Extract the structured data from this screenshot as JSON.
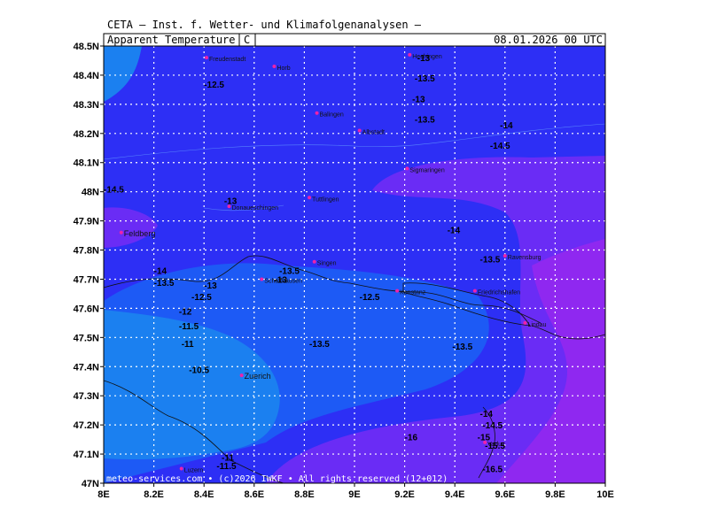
{
  "header": {
    "institute": "CETA — Inst. f. Wetter- und Klimafolgenanalysen —",
    "parameter": "Apparent_Temperature",
    "unit": "C",
    "datetime": "08.01.2026 00 UTC"
  },
  "footer": {
    "credit": "meteo-services.com • (c)2026 IWKF • All rights reserved (12+012)"
  },
  "axes": {
    "lon_labels": [
      "8E",
      "8.2E",
      "8.4E",
      "8.6E",
      "8.8E",
      "9E",
      "9.2E",
      "9.4E",
      "9.6E",
      "9.8E",
      "10E"
    ],
    "lat_labels": [
      "48.5N",
      "48.4N",
      "48.3N",
      "48.2N",
      "48.1N",
      "48N",
      "47.9N",
      "47.8N",
      "47.7N",
      "47.6N",
      "47.5N",
      "47.4N",
      "47.3N",
      "47.2N",
      "47.1N",
      "47N"
    ],
    "lon_range": [
      8.0,
      10.0
    ],
    "lat_range": [
      47.0,
      48.5
    ]
  },
  "colors": {
    "dark_blue": "#2d2ff5",
    "mid_blue": "#1d5af5",
    "light_blue": "#1b80f0",
    "violet": "#6a2cf5",
    "purple": "#8f28f0",
    "grid": "#ffffff",
    "city_marker": "#ee22aa"
  },
  "cities": [
    {
      "name": "Freudenstadt",
      "lon": 8.41,
      "lat": 48.46
    },
    {
      "name": "Horb",
      "lon": 8.68,
      "lat": 48.43
    },
    {
      "name": "Hechingen",
      "lon": 9.22,
      "lat": 48.47
    },
    {
      "name": "Balingen",
      "lon": 8.85,
      "lat": 48.27
    },
    {
      "name": "Albstadt",
      "lon": 9.02,
      "lat": 48.21
    },
    {
      "name": "Sigmaringen",
      "lon": 9.21,
      "lat": 48.08
    },
    {
      "name": "Tuttlingen",
      "lon": 8.82,
      "lat": 47.98
    },
    {
      "name": "Donaueschingen",
      "lon": 8.5,
      "lat": 47.95
    },
    {
      "name": "Feldberg",
      "lon": 8.07,
      "lat": 47.86
    },
    {
      "name": "Singen",
      "lon": 8.84,
      "lat": 47.76
    },
    {
      "name": "Schaffhausen",
      "lon": 8.63,
      "lat": 47.7
    },
    {
      "name": "Konstanz",
      "lon": 9.17,
      "lat": 47.66
    },
    {
      "name": "Ravensburg",
      "lon": 9.6,
      "lat": 47.78
    },
    {
      "name": "Friedrichshafen",
      "lon": 9.48,
      "lat": 47.66
    },
    {
      "name": "Lindau",
      "lon": 9.68,
      "lat": 47.55
    },
    {
      "name": "Zuerich",
      "lon": 8.55,
      "lat": 47.37
    },
    {
      "name": "Vaduz",
      "lon": 9.52,
      "lat": 47.14
    },
    {
      "name": "Luzern",
      "lon": 8.31,
      "lat": 47.05
    }
  ],
  "values": [
    {
      "text": "-13",
      "lon": 9.25,
      "lat": 48.46
    },
    {
      "text": "-12.5",
      "lon": 8.4,
      "lat": 48.37
    },
    {
      "text": "-13.5",
      "lon": 9.24,
      "lat": 48.39
    },
    {
      "text": "-13",
      "lon": 9.23,
      "lat": 48.32
    },
    {
      "text": "-13.5",
      "lon": 9.24,
      "lat": 48.25
    },
    {
      "text": "-14",
      "lon": 9.58,
      "lat": 48.23
    },
    {
      "text": "-14.5",
      "lon": 9.54,
      "lat": 48.16
    },
    {
      "text": "-14.5",
      "lon": 8.0,
      "lat": 48.01
    },
    {
      "text": "-13",
      "lon": 8.48,
      "lat": 47.97
    },
    {
      "text": "-14",
      "lon": 9.37,
      "lat": 47.87
    },
    {
      "text": "-13.5",
      "lon": 9.5,
      "lat": 47.77
    },
    {
      "text": "-14",
      "lon": 8.2,
      "lat": 47.73
    },
    {
      "text": "-13.5",
      "lon": 8.2,
      "lat": 47.69
    },
    {
      "text": "-13.5",
      "lon": 8.7,
      "lat": 47.73
    },
    {
      "text": "-13",
      "lon": 8.68,
      "lat": 47.7
    },
    {
      "text": "-13",
      "lon": 8.4,
      "lat": 47.68
    },
    {
      "text": "-12.5",
      "lon": 8.35,
      "lat": 47.64
    },
    {
      "text": "-12.5",
      "lon": 9.02,
      "lat": 47.64
    },
    {
      "text": "-12",
      "lon": 8.3,
      "lat": 47.59
    },
    {
      "text": "-11.5",
      "lon": 8.3,
      "lat": 47.54
    },
    {
      "text": "-11",
      "lon": 8.31,
      "lat": 47.48
    },
    {
      "text": "-13.5",
      "lon": 9.39,
      "lat": 47.47
    },
    {
      "text": "-13.5",
      "lon": 8.82,
      "lat": 47.48
    },
    {
      "text": "-10.5",
      "lon": 8.34,
      "lat": 47.39
    },
    {
      "text": "-14",
      "lon": 9.5,
      "lat": 47.24
    },
    {
      "text": "-14.5",
      "lon": 9.51,
      "lat": 47.2
    },
    {
      "text": "-15",
      "lon": 9.49,
      "lat": 47.16
    },
    {
      "text": "-16",
      "lon": 9.2,
      "lat": 47.16
    },
    {
      "text": "-15.5",
      "lon": 9.52,
      "lat": 47.13
    },
    {
      "text": "-11",
      "lon": 8.47,
      "lat": 47.09
    },
    {
      "text": "-11.5",
      "lon": 8.45,
      "lat": 47.06
    },
    {
      "text": "-16.5",
      "lon": 9.51,
      "lat": 47.05
    }
  ]
}
